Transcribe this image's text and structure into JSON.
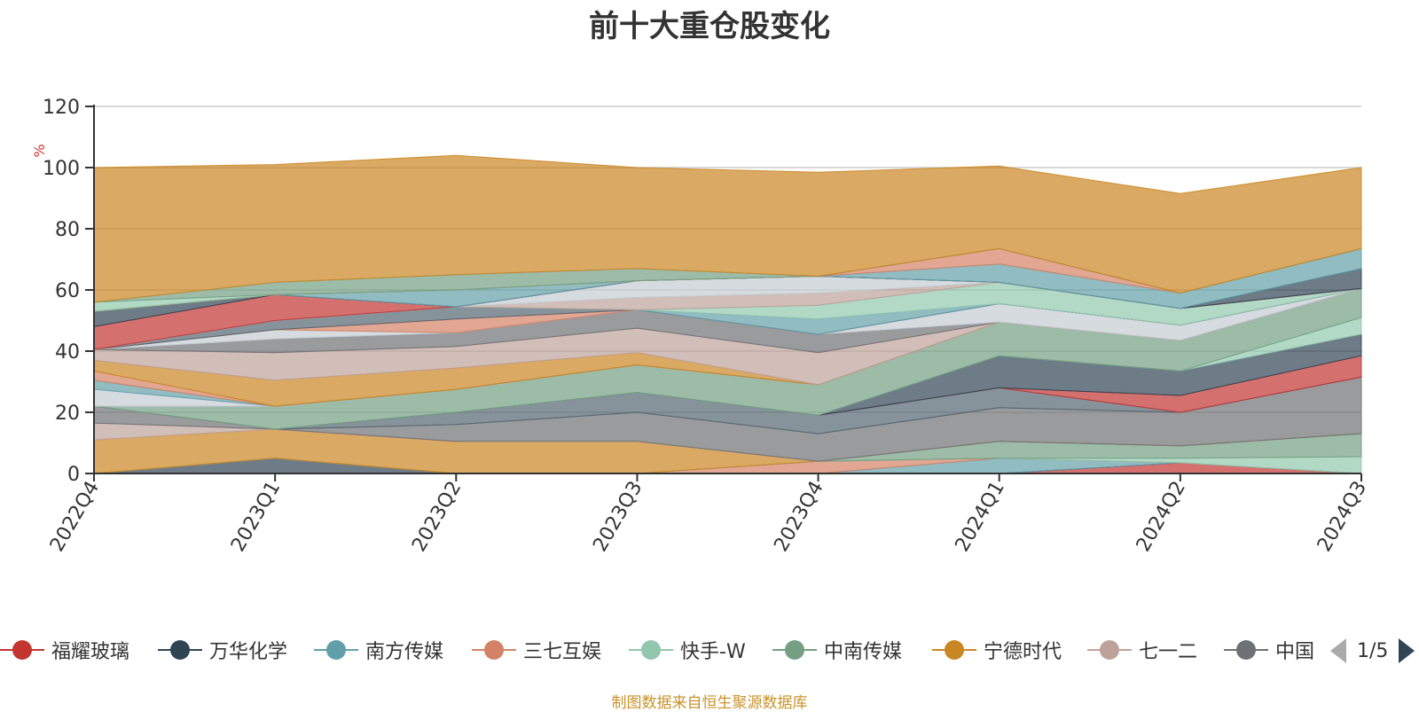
{
  "chart_data": {
    "type": "area",
    "title": "前十大重仓股变化",
    "ylabel": "%",
    "ylim": [
      0,
      120
    ],
    "yticks": [
      0,
      20,
      40,
      60,
      80,
      100,
      120
    ],
    "grid": true,
    "legend_position": "bottom",
    "categories": [
      "2022Q4",
      "2023Q1",
      "2023Q2",
      "2023Q3",
      "2023Q4",
      "2024Q1",
      "2024Q2",
      "2024Q3"
    ],
    "layers": [
      {
        "name": "福耀玻璃",
        "color": "#c23531",
        "values": [
          0,
          0,
          0,
          0,
          0,
          0,
          3.5,
          0
        ]
      },
      {
        "name": "万华化学",
        "color": "#2f4554",
        "values": [
          0,
          5,
          0,
          0,
          0,
          0,
          0,
          0
        ]
      },
      {
        "name": "南方传媒",
        "color": "#61a0a8",
        "values": [
          0,
          0,
          0,
          0,
          0,
          5,
          0,
          0
        ]
      },
      {
        "name": "三七互娱",
        "color": "#d48265",
        "values": [
          0,
          0,
          0,
          0,
          4,
          0,
          0,
          0
        ]
      },
      {
        "name": "快手-W",
        "color": "#91c7ae",
        "values": [
          0,
          0,
          0,
          0,
          0,
          0,
          1.5,
          5.5
        ]
      },
      {
        "name": "中南传媒",
        "color": "#749f83",
        "values": [
          0,
          0,
          0,
          0,
          0,
          5.5,
          4,
          7.5
        ]
      },
      {
        "name": "宁德时代",
        "color": "#ca8622",
        "values": [
          11,
          9.5,
          10.5,
          10.5,
          0,
          0,
          0,
          0
        ]
      },
      {
        "name": "七一二",
        "color": "#bda29a",
        "values": [
          5.5,
          0,
          0,
          0,
          0,
          0,
          0,
          0
        ]
      },
      {
        "name": "中国",
        "color": "#6e7074",
        "values": [
          5.5,
          0,
          5.5,
          9.5,
          9,
          11,
          11,
          18.5
        ]
      },
      {
        "name": "",
        "color": "#546570",
        "values": [
          0,
          0,
          4,
          6.5,
          6,
          6.5,
          0,
          0
        ]
      },
      {
        "name": "",
        "color": "#c23531",
        "values": [
          0,
          0,
          0,
          0,
          0,
          0,
          5.5,
          7
        ]
      },
      {
        "name": "",
        "color": "#2f4554",
        "values": [
          0,
          0,
          0,
          0,
          0,
          10.5,
          8,
          7
        ]
      },
      {
        "name": "",
        "color": "#91c7ae",
        "values": [
          0,
          0,
          0,
          0,
          0,
          0,
          0,
          5.5
        ]
      },
      {
        "name": "",
        "color": "#749f83",
        "values": [
          0,
          7.5,
          7.5,
          9,
          10,
          11,
          10,
          9.5
        ]
      },
      {
        "name": "",
        "color": "#c4ccd3",
        "values": [
          5.5,
          0,
          0,
          0,
          0,
          0,
          0,
          0
        ]
      },
      {
        "name": "",
        "color": "#61a0a8",
        "values": [
          3,
          0,
          0,
          0,
          0,
          0,
          0,
          0
        ]
      },
      {
        "name": "",
        "color": "#d48265",
        "values": [
          3,
          0,
          0,
          0,
          0,
          0,
          0,
          0
        ]
      },
      {
        "name": "",
        "color": "#ca8622",
        "values": [
          3.5,
          8.5,
          7,
          4,
          0,
          0,
          0,
          0
        ]
      },
      {
        "name": "",
        "color": "#bda29a",
        "values": [
          3.5,
          9,
          7,
          8,
          10.5,
          0,
          0,
          0
        ]
      },
      {
        "name": "",
        "color": "#6e7074",
        "values": [
          0,
          4.5,
          4.5,
          6,
          6,
          0,
          0,
          0
        ]
      },
      {
        "name": "",
        "color": "#c4ccd3",
        "values": [
          0,
          3,
          0,
          0,
          0,
          6,
          5,
          0
        ]
      },
      {
        "name": "",
        "color": "#d48265",
        "values": [
          0,
          0,
          4.5,
          0,
          0,
          0,
          0,
          0
        ]
      },
      {
        "name": "",
        "color": "#546570",
        "values": [
          0,
          3,
          4,
          0,
          0,
          0,
          0,
          0
        ]
      },
      {
        "name": "",
        "color": "#61a0a8",
        "values": [
          0,
          0,
          0,
          0,
          5,
          0,
          0,
          0
        ]
      },
      {
        "name": "",
        "color": "#91c7ae",
        "values": [
          0,
          0,
          0,
          0,
          4.5,
          7,
          5.5,
          0
        ]
      },
      {
        "name": "",
        "color": "#bda29a",
        "values": [
          0,
          0,
          0,
          4,
          4,
          0,
          0,
          0
        ]
      },
      {
        "name": "",
        "color": "#c4ccd3",
        "values": [
          0,
          0,
          0,
          5.5,
          5.5,
          0,
          0,
          0
        ]
      },
      {
        "name": "",
        "color": "#c23531",
        "values": [
          7.5,
          8.5,
          0,
          0,
          0,
          0,
          0,
          0
        ]
      },
      {
        "name": "",
        "color": "#2f4554",
        "values": [
          5,
          0,
          0,
          0,
          0,
          0,
          0,
          6.5
        ]
      },
      {
        "name": "",
        "color": "#61a0a8",
        "values": [
          0,
          0,
          5.5,
          0,
          0,
          6,
          5,
          6.5
        ]
      },
      {
        "name": "",
        "color": "#d48265",
        "values": [
          0,
          0,
          0,
          0,
          0,
          5,
          0,
          0
        ]
      },
      {
        "name": "",
        "color": "#ca8622",
        "values": [
          0,
          0,
          0,
          0,
          0,
          0,
          0,
          0
        ]
      },
      {
        "name": "",
        "color": "#91c7ae",
        "values": [
          3,
          0,
          0,
          0,
          0,
          0,
          0,
          0
        ]
      },
      {
        "name": "",
        "color": "#749f83",
        "values": [
          0,
          4,
          5,
          4,
          0,
          0,
          0,
          0
        ]
      },
      {
        "name": "",
        "color": "#ca8622",
        "values": [
          44,
          38.5,
          39,
          33,
          34,
          27,
          32.5,
          26.5
        ]
      }
    ]
  },
  "legend": {
    "items": [
      {
        "name": "福耀玻璃",
        "color": "#c23531"
      },
      {
        "name": "万华化学",
        "color": "#2f4554"
      },
      {
        "name": "南方传媒",
        "color": "#61a0a8"
      },
      {
        "name": "三七互娱",
        "color": "#d48265"
      },
      {
        "name": "快手-W",
        "color": "#91c7ae"
      },
      {
        "name": "中南传媒",
        "color": "#749f83"
      },
      {
        "name": "宁德时代",
        "color": "#ca8622"
      },
      {
        "name": "七一二",
        "color": "#bda29a"
      },
      {
        "name": "中国",
        "color": "#6e7074"
      }
    ],
    "pager_text": "1/5"
  },
  "source_text": "制图数据来自恒生聚源数据库"
}
